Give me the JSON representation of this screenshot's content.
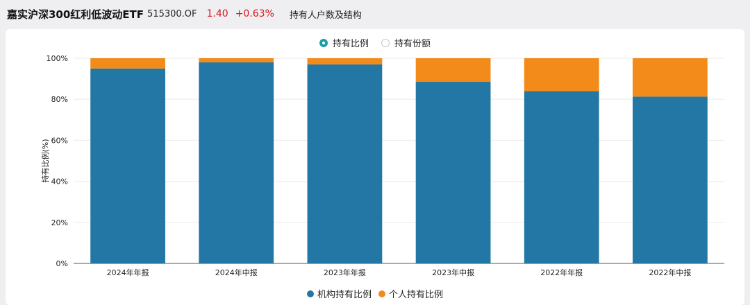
{
  "header": {
    "fund_name": "嘉实沪深300红利低波动ETF",
    "fund_code": "515300.OF",
    "price": "1.40",
    "change": "+0.63%",
    "section_title": "持有人户数及结构"
  },
  "toggle": {
    "options": [
      {
        "label": "持有比例",
        "selected": true
      },
      {
        "label": "持有份额",
        "selected": false
      }
    ]
  },
  "colors": {
    "institutional": "#2277a4",
    "individual": "#f28b1a",
    "accent": "#1a9fa5",
    "price_red": "#d9141b"
  },
  "chart_data": {
    "type": "bar",
    "stacked": true,
    "categories": [
      "2024年年报",
      "2024年中报",
      "2023年年报",
      "2023年中报",
      "2022年年报",
      "2022年中报"
    ],
    "series": [
      {
        "name": "机构持有比例",
        "values": [
          95,
          98,
          97,
          88.5,
          84,
          81.3
        ]
      },
      {
        "name": "个人持有比例",
        "values": [
          5,
          2,
          3,
          11.5,
          16,
          18.7
        ]
      }
    ],
    "ylabel": "持有比例(%)",
    "ylim": [
      0,
      100
    ],
    "yticks": [
      "0%",
      "20%",
      "40%",
      "60%",
      "80%",
      "100%"
    ],
    "grid": true,
    "legend_position": "bottom"
  }
}
